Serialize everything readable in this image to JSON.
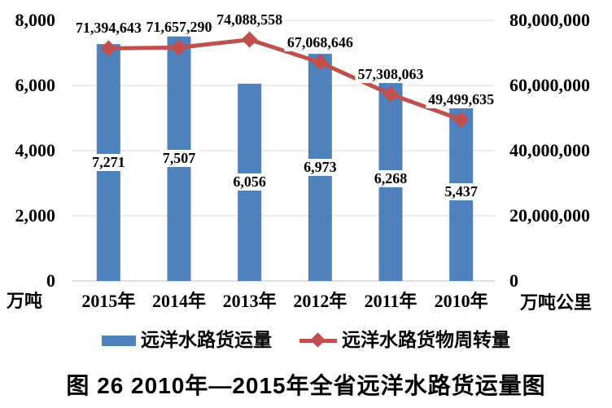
{
  "chart_data": {
    "type": "combo-bar-line",
    "categories": [
      "2015年",
      "2014年",
      "2013年",
      "2012年",
      "2011年",
      "2010年"
    ],
    "series": [
      {
        "name": "远洋水路货运量",
        "chart_type": "bar",
        "axis": "left",
        "values": [
          7271,
          7507,
          6056,
          6973,
          6268,
          5437
        ],
        "data_labels": [
          "7,271",
          "7,507",
          "6,056",
          "6,973",
          "6,268",
          "5,437"
        ]
      },
      {
        "name": "远洋水路货物周转量",
        "chart_type": "line",
        "marker": "diamond",
        "axis": "right",
        "values": [
          71394643,
          71657290,
          74088558,
          67068646,
          57308063,
          49499635
        ],
        "data_labels": [
          "71,394,643",
          "71,657,290",
          "74,088,558",
          "67,068,646",
          "57,308,063",
          "49,499,635"
        ]
      }
    ],
    "left_axis": {
      "label": "万吨",
      "min": 0,
      "max": 8000,
      "step": 2000,
      "tick_labels": [
        "0",
        "2,000",
        "4,000",
        "6,000",
        "8,000"
      ]
    },
    "right_axis": {
      "label": "万吨公里",
      "min": 0,
      "max": 80000000,
      "step": 20000000,
      "tick_labels": [
        "0",
        "20,000,000",
        "40,000,000",
        "60,000,000",
        "80,000,000"
      ]
    },
    "grid": true,
    "legend_position": "bottom",
    "title": "图 26  2010年—2015年全省远洋水路货运量图"
  },
  "colors": {
    "bar": "#4F81BD",
    "line": "#C0504D",
    "gridline": "#D9D9D9",
    "axis_line": "#BFBFBF",
    "text": "#000000",
    "label_background": "#FFFFFF",
    "background": "#FFFFFF"
  }
}
